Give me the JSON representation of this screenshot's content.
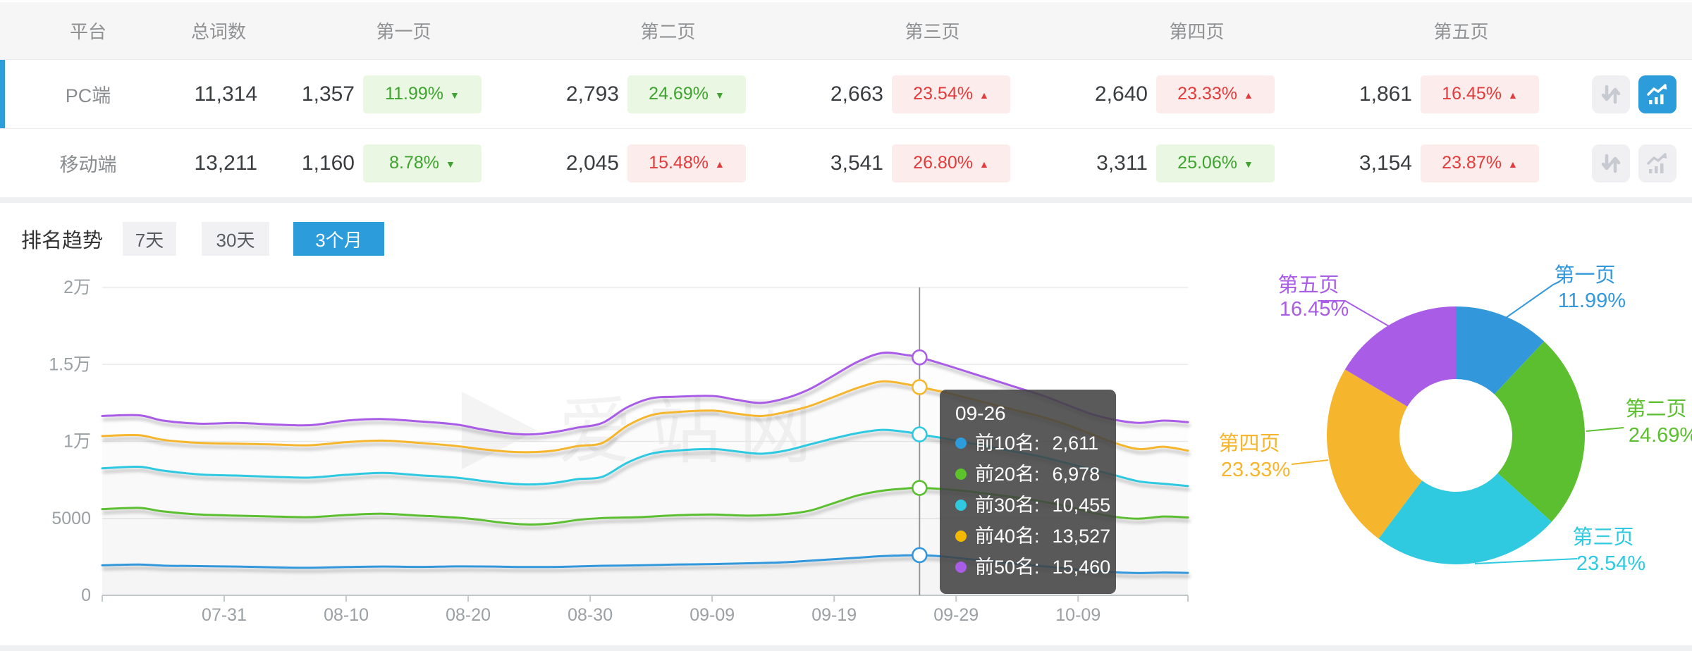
{
  "icons": {
    "down": "▼",
    "up": "▲"
  },
  "accent_color": "#2D9CDB",
  "table": {
    "headers": {
      "platform": "平台",
      "total": "总词数",
      "pages": [
        "第一页",
        "第二页",
        "第三页",
        "第四页",
        "第五页"
      ]
    },
    "rows": [
      {
        "platform": "PC端",
        "total": "11,314",
        "selected": true,
        "pages": [
          {
            "value": "1,357",
            "pct": "11.99%",
            "trend": {
              "dir": "down",
              "tone": "green"
            }
          },
          {
            "value": "2,793",
            "pct": "24.69%",
            "trend": {
              "dir": "down",
              "tone": "green"
            }
          },
          {
            "value": "2,663",
            "pct": "23.54%",
            "trend": {
              "dir": "up",
              "tone": "red"
            }
          },
          {
            "value": "2,640",
            "pct": "23.33%",
            "trend": {
              "dir": "up",
              "tone": "red"
            }
          },
          {
            "value": "1,861",
            "pct": "16.45%",
            "trend": {
              "dir": "up",
              "tone": "red"
            }
          }
        ],
        "actions": {
          "sort_active": false,
          "chart_active": true
        }
      },
      {
        "platform": "移动端",
        "total": "13,211",
        "selected": false,
        "pages": [
          {
            "value": "1,160",
            "pct": "8.78%",
            "trend": {
              "dir": "down",
              "tone": "green"
            }
          },
          {
            "value": "2,045",
            "pct": "15.48%",
            "trend": {
              "dir": "up",
              "tone": "red"
            }
          },
          {
            "value": "3,541",
            "pct": "26.80%",
            "trend": {
              "dir": "up",
              "tone": "red"
            }
          },
          {
            "value": "3,311",
            "pct": "25.06%",
            "trend": {
              "dir": "down",
              "tone": "green"
            }
          },
          {
            "value": "3,154",
            "pct": "23.87%",
            "trend": {
              "dir": "up",
              "tone": "red"
            }
          }
        ],
        "actions": {
          "sort_active": false,
          "chart_active": false
        }
      }
    ]
  },
  "trend": {
    "title": "排名趋势",
    "tabs": [
      {
        "label": "7天",
        "active": false
      },
      {
        "label": "30天",
        "active": false
      },
      {
        "label": "3个月",
        "active": true
      }
    ]
  },
  "watermark": "爱站网",
  "tooltip": {
    "date": "09-26",
    "rows": [
      {
        "label": "前10名:",
        "value": "2,611",
        "color": "#2D9CDB"
      },
      {
        "label": "前20名:",
        "value": "6,978",
        "color": "#5CC42A"
      },
      {
        "label": "前30名:",
        "value": "10,455",
        "color": "#2FC9E0"
      },
      {
        "label": "前40名:",
        "value": "13,527",
        "color": "#F5B800"
      },
      {
        "label": "前50名:",
        "value": "15,460",
        "color": "#A95CE5"
      }
    ]
  },
  "chart_data": [
    {
      "type": "line",
      "title": "排名趋势 (3个月)",
      "x_axis": {
        "tick_labels": [
          "07-31",
          "08-10",
          "08-20",
          "08-30",
          "09-09",
          "09-19",
          "09-29",
          "10-09"
        ],
        "tick_days": [
          10,
          20,
          30,
          40,
          50,
          60,
          70,
          80
        ],
        "total_days": 89,
        "grid": false
      },
      "y_axis": {
        "tick_labels": [
          "0",
          "5000",
          "1万",
          "1.5万",
          "2万"
        ],
        "tick_values": [
          0,
          5000,
          10000,
          15000,
          20000
        ],
        "ylim": [
          0,
          20000
        ],
        "grid": true
      },
      "highlight": {
        "date": "09-26",
        "day": 67
      },
      "series": [
        {
          "name": "前10名",
          "color": "#3398DB",
          "points": [
            [
              0,
              1950
            ],
            [
              3,
              2000
            ],
            [
              5,
              1930
            ],
            [
              8,
              1900
            ],
            [
              11,
              1870
            ],
            [
              14,
              1820
            ],
            [
              17,
              1790
            ],
            [
              20,
              1840
            ],
            [
              23,
              1870
            ],
            [
              26,
              1850
            ],
            [
              29,
              1880
            ],
            [
              32,
              1870
            ],
            [
              35,
              1840
            ],
            [
              38,
              1860
            ],
            [
              41,
              1920
            ],
            [
              44,
              1950
            ],
            [
              47,
              2000
            ],
            [
              50,
              2030
            ],
            [
              53,
              2080
            ],
            [
              56,
              2150
            ],
            [
              59,
              2300
            ],
            [
              62,
              2450
            ],
            [
              64,
              2550
            ],
            [
              67,
              2611
            ],
            [
              69,
              2520
            ],
            [
              71,
              2350
            ],
            [
              73,
              2200
            ],
            [
              75,
              2050
            ],
            [
              77,
              1900
            ],
            [
              79,
              1750
            ],
            [
              81,
              1600
            ],
            [
              83,
              1500
            ],
            [
              85,
              1450
            ],
            [
              87,
              1480
            ],
            [
              89,
              1460
            ]
          ]
        },
        {
          "name": "前20名",
          "color": "#5CBF30",
          "points": [
            [
              0,
              5600
            ],
            [
              3,
              5680
            ],
            [
              5,
              5450
            ],
            [
              8,
              5250
            ],
            [
              11,
              5180
            ],
            [
              14,
              5120
            ],
            [
              17,
              5080
            ],
            [
              20,
              5220
            ],
            [
              23,
              5300
            ],
            [
              26,
              5180
            ],
            [
              29,
              5050
            ],
            [
              31,
              4900
            ],
            [
              33,
              4700
            ],
            [
              35,
              4600
            ],
            [
              37,
              4680
            ],
            [
              39,
              4900
            ],
            [
              41,
              5020
            ],
            [
              44,
              5080
            ],
            [
              47,
              5200
            ],
            [
              50,
              5250
            ],
            [
              53,
              5180
            ],
            [
              56,
              5280
            ],
            [
              58,
              5500
            ],
            [
              60,
              6000
            ],
            [
              62,
              6500
            ],
            [
              64,
              6800
            ],
            [
              66,
              6950
            ],
            [
              67,
              6978
            ],
            [
              69,
              6900
            ],
            [
              71,
              6750
            ],
            [
              73,
              6550
            ],
            [
              75,
              6350
            ],
            [
              77,
              6100
            ],
            [
              79,
              5800
            ],
            [
              81,
              5400
            ],
            [
              83,
              5100
            ],
            [
              85,
              4980
            ],
            [
              87,
              5120
            ],
            [
              89,
              5060
            ]
          ]
        },
        {
          "name": "前30名",
          "color": "#2FC9E0",
          "points": [
            [
              0,
              8250
            ],
            [
              3,
              8350
            ],
            [
              5,
              8100
            ],
            [
              8,
              7850
            ],
            [
              11,
              7780
            ],
            [
              14,
              7700
            ],
            [
              17,
              7650
            ],
            [
              20,
              7830
            ],
            [
              23,
              7950
            ],
            [
              26,
              7800
            ],
            [
              29,
              7650
            ],
            [
              31,
              7450
            ],
            [
              33,
              7280
            ],
            [
              35,
              7200
            ],
            [
              37,
              7300
            ],
            [
              39,
              7550
            ],
            [
              41,
              7700
            ],
            [
              43,
              8600
            ],
            [
              45,
              9200
            ],
            [
              47,
              9400
            ],
            [
              50,
              9500
            ],
            [
              52,
              9350
            ],
            [
              54,
              9200
            ],
            [
              56,
              9400
            ],
            [
              58,
              9800
            ],
            [
              60,
              10200
            ],
            [
              62,
              10550
            ],
            [
              64,
              10750
            ],
            [
              66,
              10600
            ],
            [
              67,
              10455
            ],
            [
              69,
              10200
            ],
            [
              71,
              9900
            ],
            [
              73,
              9600
            ],
            [
              75,
              9300
            ],
            [
              77,
              9000
            ],
            [
              79,
              8600
            ],
            [
              81,
              8200
            ],
            [
              83,
              7800
            ],
            [
              85,
              7400
            ],
            [
              87,
              7250
            ],
            [
              89,
              7100
            ]
          ]
        },
        {
          "name": "前40名",
          "color": "#F5B62E",
          "points": [
            [
              0,
              10350
            ],
            [
              3,
              10400
            ],
            [
              5,
              10100
            ],
            [
              8,
              9900
            ],
            [
              11,
              9850
            ],
            [
              14,
              9800
            ],
            [
              17,
              9750
            ],
            [
              20,
              9950
            ],
            [
              23,
              10050
            ],
            [
              26,
              9900
            ],
            [
              29,
              9700
            ],
            [
              31,
              9500
            ],
            [
              33,
              9350
            ],
            [
              35,
              9300
            ],
            [
              37,
              9400
            ],
            [
              39,
              9700
            ],
            [
              41,
              9900
            ],
            [
              43,
              11000
            ],
            [
              45,
              11700
            ],
            [
              47,
              11900
            ],
            [
              50,
              12000
            ],
            [
              52,
              11800
            ],
            [
              54,
              11650
            ],
            [
              56,
              11900
            ],
            [
              58,
              12300
            ],
            [
              60,
              12900
            ],
            [
              62,
              13500
            ],
            [
              64,
              13900
            ],
            [
              66,
              13700
            ],
            [
              67,
              13527
            ],
            [
              69,
              13200
            ],
            [
              71,
              12800
            ],
            [
              73,
              12400
            ],
            [
              75,
              12000
            ],
            [
              77,
              11600
            ],
            [
              79,
              11100
            ],
            [
              81,
              10500
            ],
            [
              83,
              9900
            ],
            [
              85,
              9500
            ],
            [
              87,
              9650
            ],
            [
              89,
              9400
            ]
          ]
        },
        {
          "name": "前50名",
          "color": "#A95CE5",
          "points": [
            [
              0,
              11650
            ],
            [
              3,
              11700
            ],
            [
              5,
              11350
            ],
            [
              8,
              11150
            ],
            [
              11,
              11200
            ],
            [
              14,
              11100
            ],
            [
              17,
              11050
            ],
            [
              20,
              11350
            ],
            [
              23,
              11450
            ],
            [
              26,
              11300
            ],
            [
              29,
              11100
            ],
            [
              31,
              10800
            ],
            [
              33,
              10550
            ],
            [
              35,
              10450
            ],
            [
              37,
              10600
            ],
            [
              39,
              10900
            ],
            [
              41,
              11200
            ],
            [
              43,
              12200
            ],
            [
              45,
              12800
            ],
            [
              47,
              12900
            ],
            [
              50,
              12950
            ],
            [
              52,
              12700
            ],
            [
              54,
              12500
            ],
            [
              56,
              12800
            ],
            [
              58,
              13400
            ],
            [
              60,
              14300
            ],
            [
              62,
              15200
            ],
            [
              64,
              15750
            ],
            [
              66,
              15600
            ],
            [
              67,
              15460
            ],
            [
              69,
              15000
            ],
            [
              71,
              14500
            ],
            [
              73,
              14000
            ],
            [
              75,
              13500
            ],
            [
              77,
              13000
            ],
            [
              79,
              12400
            ],
            [
              81,
              11800
            ],
            [
              83,
              11400
            ],
            [
              85,
              11200
            ],
            [
              87,
              11350
            ],
            [
              89,
              11250
            ]
          ]
        }
      ]
    },
    {
      "type": "pie",
      "donut": true,
      "slices": [
        {
          "label": "第一页",
          "pct": 11.99,
          "pct_label": "11.99%",
          "color": "#3398DB"
        },
        {
          "label": "第二页",
          "pct": 24.69,
          "pct_label": "24.69%",
          "color": "#5CBF30"
        },
        {
          "label": "第三页",
          "pct": 23.54,
          "pct_label": "23.54%",
          "color": "#2FC9E0"
        },
        {
          "label": "第四页",
          "pct": 23.33,
          "pct_label": "23.33%",
          "color": "#F5B62E"
        },
        {
          "label": "第五页",
          "pct": 16.45,
          "pct_label": "16.45%",
          "color": "#A95CE5"
        }
      ]
    }
  ]
}
